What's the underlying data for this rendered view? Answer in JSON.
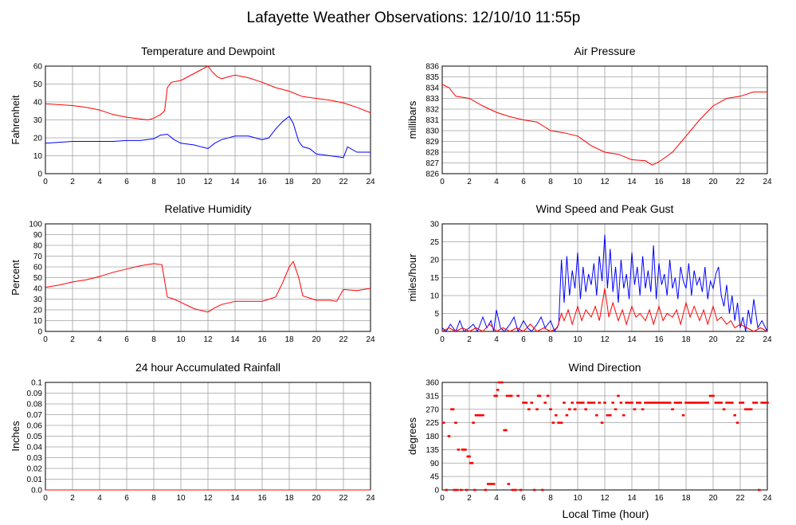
{
  "page_title": "Lafayette Weather Observations: 12/10/10 11:55p",
  "x_axis_label": "Local Time (hour)",
  "chart_data": [
    {
      "type": "line",
      "title": "Temperature and Dewpoint",
      "ylabel": "Fahrenheit",
      "xlabel": "",
      "xlim": [
        0,
        24
      ],
      "xticks": [
        0,
        2,
        4,
        6,
        8,
        10,
        12,
        14,
        16,
        18,
        20,
        22,
        24
      ],
      "ylim": [
        0,
        60
      ],
      "yticks": [
        0,
        10,
        20,
        30,
        40,
        50,
        60
      ],
      "grid": true,
      "series": [
        {
          "color": "#ff0000",
          "x": [
            0,
            1,
            2,
            3,
            4,
            5,
            6,
            7,
            7.6,
            8,
            8.5,
            8.8,
            9,
            9.3,
            10,
            10.5,
            11,
            11.5,
            12,
            12.3,
            12.7,
            13,
            13.5,
            14,
            15,
            16,
            17,
            18,
            19,
            20,
            21,
            22,
            23,
            24
          ],
          "y": [
            39,
            38.5,
            38,
            37,
            35.5,
            33,
            31.5,
            30.5,
            30,
            31,
            33,
            35,
            48,
            51,
            52,
            54,
            56,
            58,
            60,
            57,
            54,
            53,
            54,
            55,
            53.5,
            51,
            48,
            46,
            43,
            42,
            41,
            39.5,
            37,
            34
          ]
        },
        {
          "color": "#0000ff",
          "x": [
            0,
            1,
            2,
            3,
            4,
            5,
            6,
            7,
            8,
            8.5,
            9,
            9.5,
            10,
            11,
            11.5,
            12,
            12.5,
            13,
            14,
            15,
            16,
            16.5,
            17,
            17.5,
            18,
            18.3,
            18.7,
            19,
            19.5,
            20,
            20.5,
            21,
            21.5,
            22,
            22.3,
            23,
            24
          ],
          "y": [
            17,
            17.5,
            18,
            18,
            18,
            18,
            18.5,
            18.5,
            19.5,
            21.5,
            22,
            19,
            17,
            16,
            15,
            14,
            17,
            19,
            21,
            21,
            19,
            20,
            25,
            29,
            32,
            28,
            18,
            15,
            14,
            11,
            10.5,
            10,
            9.5,
            9,
            15,
            12,
            12
          ]
        }
      ]
    },
    {
      "type": "line",
      "title": "Air Pressure",
      "ylabel": "millibars",
      "xlabel": "",
      "xlim": [
        0,
        24
      ],
      "xticks": [
        0,
        2,
        4,
        6,
        8,
        10,
        12,
        14,
        16,
        18,
        20,
        22,
        24
      ],
      "ylim": [
        826,
        836
      ],
      "yticks": [
        826,
        827,
        828,
        829,
        830,
        831,
        832,
        833,
        834,
        835,
        836
      ],
      "grid": true,
      "series": [
        {
          "color": "#ff0000",
          "x": [
            0,
            0.5,
            1,
            2,
            3,
            4,
            5,
            6,
            7,
            8,
            9,
            10,
            11,
            12,
            13,
            14,
            15,
            15.5,
            16,
            17,
            18,
            19,
            20,
            21,
            22,
            23,
            24
          ],
          "y": [
            834.3,
            834,
            833.2,
            833,
            832.3,
            831.7,
            831.3,
            831,
            830.8,
            830,
            829.8,
            829.5,
            828.6,
            828,
            827.8,
            827.3,
            827.2,
            826.8,
            827.1,
            828,
            829.5,
            831,
            832.3,
            833,
            833.2,
            833.6,
            833.6
          ]
        }
      ]
    },
    {
      "type": "line",
      "title": "Relative Humidity",
      "ylabel": "Percent",
      "xlabel": "",
      "xlim": [
        0,
        24
      ],
      "xticks": [
        0,
        2,
        4,
        6,
        8,
        10,
        12,
        14,
        16,
        18,
        20,
        22,
        24
      ],
      "ylim": [
        0,
        100
      ],
      "yticks": [
        0,
        10,
        20,
        30,
        40,
        50,
        60,
        70,
        80,
        90,
        100
      ],
      "grid": true,
      "series": [
        {
          "color": "#ff0000",
          "x": [
            0,
            1,
            2,
            3,
            4,
            5,
            6,
            7,
            8,
            8.6,
            9,
            9.5,
            10,
            11,
            12,
            12.5,
            13,
            14,
            15,
            16,
            17,
            17.5,
            18,
            18.3,
            18.7,
            19,
            19.5,
            20,
            21,
            21.5,
            22,
            23,
            24
          ],
          "y": [
            41,
            43,
            46,
            48,
            51,
            55,
            58,
            61,
            63,
            62,
            32,
            30,
            27,
            21,
            18,
            22,
            25,
            28,
            28,
            28,
            32,
            45,
            60,
            65,
            50,
            33,
            31,
            29,
            29,
            28,
            39,
            38,
            40
          ]
        }
      ]
    },
    {
      "type": "line",
      "title": "Wind Speed and Peak Gust",
      "ylabel": "miles/hour",
      "xlabel": "",
      "xlim": [
        0,
        24
      ],
      "xticks": [
        0,
        2,
        4,
        6,
        8,
        10,
        12,
        14,
        16,
        18,
        20,
        22,
        24
      ],
      "ylim": [
        0,
        30
      ],
      "yticks": [
        0,
        5,
        10,
        15,
        20,
        25,
        30
      ],
      "grid": true,
      "series": [
        {
          "color": "#0000ff",
          "x": [
            0,
            0.3,
            0.6,
            1,
            1.3,
            1.6,
            2,
            2.3,
            2.6,
            3,
            3.3,
            3.6,
            3.8,
            4,
            4.3,
            4.6,
            5,
            5.3,
            5.6,
            6,
            6.3,
            6.6,
            7,
            7.3,
            7.6,
            8,
            8.3,
            8.6,
            8.8,
            9,
            9.2,
            9.4,
            9.6,
            9.8,
            10,
            10.2,
            10.4,
            10.6,
            10.8,
            11,
            11.2,
            11.4,
            11.6,
            11.8,
            12,
            12.2,
            12.4,
            12.6,
            12.8,
            13,
            13.2,
            13.4,
            13.6,
            13.8,
            14,
            14.2,
            14.4,
            14.6,
            14.8,
            15,
            15.2,
            15.4,
            15.6,
            15.8,
            16,
            16.2,
            16.4,
            16.6,
            16.8,
            17,
            17.2,
            17.4,
            17.6,
            17.8,
            18,
            18.2,
            18.4,
            18.6,
            18.8,
            19,
            19.2,
            19.4,
            19.6,
            19.8,
            20,
            20.2,
            20.4,
            20.6,
            20.8,
            21,
            21.2,
            21.4,
            21.6,
            21.8,
            22,
            22.2,
            22.4,
            22.6,
            22.8,
            23,
            23.3,
            23.6,
            24
          ],
          "y": [
            1,
            0,
            2,
            0,
            3,
            0,
            1,
            2,
            0,
            4,
            1,
            3,
            0,
            6,
            1,
            0,
            2,
            4,
            0,
            3,
            1,
            0,
            2,
            4,
            1,
            3,
            0,
            2,
            20,
            8,
            21,
            10,
            17,
            12,
            22,
            9,
            18,
            11,
            16,
            13,
            19,
            10,
            21,
            14,
            27,
            12,
            23,
            11,
            18,
            8,
            20,
            12,
            16,
            9,
            22,
            13,
            18,
            10,
            21,
            12,
            17,
            11,
            24,
            9,
            19,
            13,
            16,
            10,
            20,
            12,
            15,
            9,
            18,
            14,
            12,
            19,
            10,
            17,
            13,
            15,
            11,
            18,
            9,
            14,
            12,
            16,
            18,
            10,
            7,
            13,
            5,
            10,
            3,
            8,
            1,
            4,
            0,
            6,
            2,
            9,
            1,
            3,
            0
          ]
        },
        {
          "color": "#ff0000",
          "x": [
            0,
            0.5,
            1,
            1.5,
            2,
            2.5,
            3,
            3.5,
            4,
            4.5,
            5,
            5.5,
            6,
            6.5,
            7,
            7.5,
            8,
            8.5,
            8.8,
            9,
            9.3,
            9.6,
            10,
            10.3,
            10.6,
            11,
            11.3,
            11.6,
            12,
            12.3,
            12.6,
            13,
            13.3,
            13.6,
            14,
            14.3,
            14.6,
            15,
            15.3,
            15.6,
            16,
            16.3,
            16.6,
            17,
            17.3,
            17.6,
            18,
            18.3,
            18.6,
            19,
            19.3,
            19.6,
            20,
            20.3,
            20.6,
            21,
            21.3,
            21.6,
            22,
            22.5,
            23,
            23.5,
            24
          ],
          "y": [
            0,
            1,
            0,
            1,
            0,
            1,
            0,
            2,
            0,
            1,
            0,
            1,
            0,
            2,
            0,
            1,
            0,
            1,
            5,
            3,
            6,
            2,
            7,
            3,
            6,
            4,
            7,
            3,
            12,
            4,
            8,
            3,
            6,
            2,
            7,
            4,
            5,
            3,
            6,
            2,
            7,
            3,
            5,
            4,
            6,
            2,
            8,
            4,
            7,
            3,
            6,
            2,
            7,
            3,
            4,
            2,
            3,
            1,
            2,
            1,
            0,
            1,
            0
          ]
        }
      ]
    },
    {
      "type": "line",
      "title": "24 hour Accumulated Rainfall",
      "ylabel": "Inches",
      "xlabel": "",
      "xlim": [
        0,
        24
      ],
      "xticks": [
        0,
        2,
        4,
        6,
        8,
        10,
        12,
        14,
        16,
        18,
        20,
        22,
        24
      ],
      "ylim": [
        0,
        0.1
      ],
      "yticks": [
        "0.0",
        "0.01",
        "0.02",
        "0.03",
        "0.04",
        "0.05",
        "0.06",
        "0.07",
        "0.08",
        "0.09",
        "0.1"
      ],
      "grid": true,
      "series": [
        {
          "color": "#ff0000",
          "x": [
            0,
            24
          ],
          "y": [
            0,
            0
          ]
        }
      ]
    },
    {
      "type": "scatter",
      "title": "Wind Direction",
      "ylabel": "degrees",
      "xlabel": "Local Time (hour)",
      "xlim": [
        0,
        24
      ],
      "xticks": [
        0,
        2,
        4,
        6,
        8,
        10,
        12,
        14,
        16,
        18,
        20,
        22,
        24
      ],
      "ylim": [
        0,
        360
      ],
      "yticks": [
        0,
        45,
        90,
        135,
        180,
        225,
        270,
        315,
        360
      ],
      "grid": true,
      "series": [
        {
          "color": "#ff0000",
          "x": [
            0.1,
            0.3,
            0.5,
            0.7,
            0.8,
            0.9,
            1,
            1.1,
            1.2,
            1.4,
            1.5,
            1.6,
            1.7,
            1.8,
            1.9,
            2,
            2.1,
            2.2,
            2.3,
            2.4,
            2.5,
            2.6,
            2.8,
            3,
            3.2,
            3.4,
            3.6,
            3.8,
            3.9,
            4,
            4.1,
            4.2,
            4.4,
            4.6,
            4.7,
            4.8,
            4.9,
            5,
            5.1,
            5.2,
            5.4,
            5.6,
            5.8,
            6,
            6.2,
            6.4,
            6.6,
            6.8,
            7,
            7.1,
            7.2,
            7.4,
            7.6,
            7.8,
            8,
            8.2,
            8.4,
            8.6,
            8.8,
            9,
            9.2,
            9.4,
            9.6,
            9.8,
            10,
            10.2,
            10.4,
            10.6,
            10.8,
            11,
            11.2,
            11.4,
            11.6,
            11.8,
            12,
            12.2,
            12.4,
            12.6,
            12.8,
            13,
            13.2,
            13.4,
            13.6,
            13.8,
            14,
            14.2,
            14.4,
            14.6,
            14.8,
            15,
            15.2,
            15.4,
            15.6,
            15.8,
            16,
            16.2,
            16.4,
            16.6,
            16.8,
            17,
            17.2,
            17.4,
            17.6,
            17.8,
            18,
            18.2,
            18.4,
            18.6,
            18.8,
            19,
            19.2,
            19.4,
            19.6,
            19.8,
            20,
            20.2,
            20.4,
            20.6,
            20.8,
            21,
            21.2,
            21.4,
            21.6,
            21.8,
            22,
            22.2,
            22.4,
            22.6,
            22.8,
            23,
            23.2,
            23.4,
            23.6,
            23.8,
            24
          ],
          "y": [
            225,
            0,
            180,
            270,
            270,
            0,
            225,
            0,
            135,
            0,
            135,
            135,
            135,
            0,
            112,
            112,
            90,
            90,
            225,
            0,
            250,
            250,
            250,
            250,
            0,
            20,
            20,
            20,
            315,
            315,
            335,
            360,
            360,
            200,
            200,
            315,
            20,
            315,
            315,
            0,
            0,
            315,
            0,
            292,
            292,
            270,
            292,
            0,
            270,
            315,
            315,
            0,
            292,
            315,
            270,
            225,
            250,
            225,
            225,
            292,
            250,
            270,
            292,
            270,
            292,
            292,
            292,
            270,
            292,
            292,
            292,
            250,
            292,
            225,
            292,
            250,
            250,
            292,
            270,
            315,
            292,
            250,
            292,
            292,
            292,
            270,
            292,
            292,
            270,
            292,
            292,
            292,
            292,
            292,
            292,
            292,
            292,
            292,
            292,
            270,
            292,
            292,
            292,
            250,
            292,
            292,
            292,
            292,
            292,
            292,
            292,
            292,
            292,
            315,
            315,
            292,
            292,
            292,
            270,
            292,
            292,
            292,
            250,
            225,
            292,
            292,
            270,
            270,
            270,
            292,
            292,
            0,
            292,
            292,
            292
          ]
        }
      ]
    }
  ]
}
